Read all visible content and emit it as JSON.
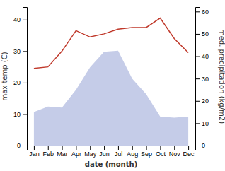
{
  "chart_data": {
    "type": "line",
    "xlabel": "date (month)",
    "ylabel": "max temp (C)",
    "y2label": "med. precipitation (kg/m2)",
    "categories": [
      "Jan",
      "Feb",
      "Mar",
      "Apr",
      "May",
      "Jun",
      "Jul",
      "Aug",
      "Sep",
      "Oct",
      "Nov",
      "Dec"
    ],
    "series": [
      {
        "type": "area",
        "axis": "y2",
        "color": "#c5cce8",
        "values": [
          15.0,
          17.5,
          17.0,
          25.0,
          35.0,
          42.0,
          42.5,
          30.0,
          23.0,
          13.0,
          12.5,
          13.0
        ]
      },
      {
        "type": "line",
        "color": "#c0392b",
        "values": [
          24.5,
          25.0,
          30.0,
          36.5,
          34.5,
          35.5,
          37.0,
          37.5,
          37.5,
          40.5,
          34.0,
          29.5
        ]
      }
    ],
    "ylim": [
      0,
      44
    ],
    "yticks": [
      0,
      10,
      20,
      30,
      40
    ],
    "y2lim": [
      0,
      62
    ],
    "y2ticks": [
      0,
      10,
      20,
      30,
      40,
      50,
      60
    ]
  }
}
